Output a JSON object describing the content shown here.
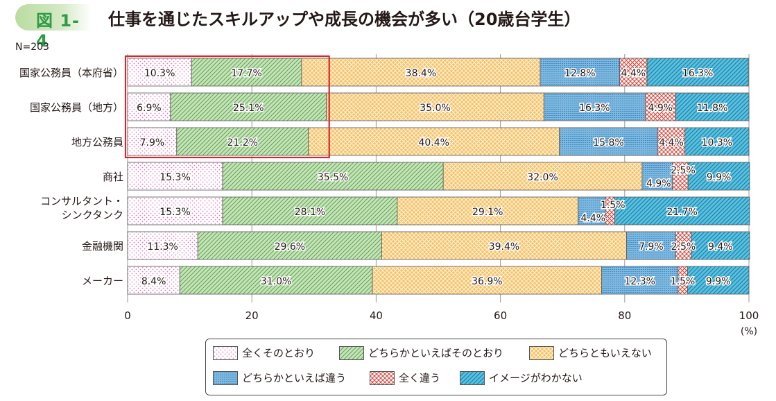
{
  "figure": {
    "badge": "図 1-4",
    "title": "仕事を通じたスキルアップや成長の機会が多い（20歳台学生）",
    "n_label": "N=203"
  },
  "colors": {
    "zen": "#f4c5e3",
    "dochira_sono": "#c7e4b8",
    "dochiramo": "#f5c26b",
    "dochira_chigau": "#7fb8de",
    "zen_chigau": "#e8928a",
    "image": "#59c2dd",
    "highlight_box": "#d9262c"
  },
  "chart_data": {
    "type": "bar",
    "orientation": "horizontal",
    "stacked": true,
    "categories": [
      "国家公務員（本府省）",
      "国家公務員（地方）",
      "地方公務員",
      "商社",
      "コンサルタント・\nシンクタンク",
      "金融機関",
      "メーカー"
    ],
    "series": [
      {
        "name": "全くそのとおり",
        "key": "zen",
        "values": [
          10.3,
          6.9,
          7.9,
          15.3,
          15.3,
          11.3,
          8.4
        ]
      },
      {
        "name": "どちらかといえばそのとおり",
        "key": "dochira_sono",
        "values": [
          17.7,
          25.1,
          21.2,
          35.5,
          28.1,
          29.6,
          31.0
        ]
      },
      {
        "name": "どちらともいえない",
        "key": "dochiramo",
        "values": [
          38.4,
          35.0,
          40.4,
          32.0,
          29.1,
          39.4,
          36.9
        ]
      },
      {
        "name": "どちらかといえば違う",
        "key": "dochira_chigau",
        "values": [
          12.8,
          16.3,
          15.8,
          4.9,
          4.4,
          7.9,
          12.3
        ]
      },
      {
        "name": "全く違う",
        "key": "zen_chigau",
        "values": [
          4.4,
          4.9,
          4.4,
          2.5,
          1.5,
          2.5,
          1.5
        ]
      },
      {
        "name": "イメージがわかない",
        "key": "image",
        "values": [
          16.3,
          11.8,
          10.3,
          9.9,
          21.7,
          9.4,
          9.9
        ]
      }
    ],
    "data_labels": [
      [
        "10.3%",
        "17.7%",
        "38.4%",
        "12.8%",
        "4.4%",
        "16.3%"
      ],
      [
        "6.9%",
        "25.1%",
        "35.0%",
        "16.3%",
        "4.9%",
        "11.8%"
      ],
      [
        "7.9%",
        "21.2%",
        "40.4%",
        "15.8%",
        "4.4%",
        "10.3%"
      ],
      [
        "15.3%",
        "35.5%",
        "32.0%",
        "4.9%",
        "2.5%",
        "9.9%"
      ],
      [
        "15.3%",
        "28.1%",
        "29.1%",
        "4.4%",
        "1.5%",
        "21.7%"
      ],
      [
        "11.3%",
        "29.6%",
        "39.4%",
        "7.9%",
        "2.5%",
        "9.4%"
      ],
      [
        "8.4%",
        "31.0%",
        "36.9%",
        "12.3%",
        "1.5%",
        "9.9%"
      ]
    ],
    "x_ticks": [
      0,
      20,
      40,
      60,
      80,
      100
    ],
    "x_tick_labels": [
      "0",
      "20",
      "40",
      "60",
      "80",
      "100"
    ],
    "xlim": [
      0,
      100
    ],
    "x_unit": "(%)",
    "gridlines": true,
    "highlight": {
      "rows": [
        0,
        1,
        2
      ],
      "up_to_series": 1,
      "color": "#d9262c"
    },
    "legend_position": "bottom",
    "legend": [
      "全くそのとおり",
      "どちらかといえばそのとおり",
      "どちらともいえない",
      "どちらかといえば違う",
      "全く違う",
      "イメージがわかない"
    ]
  }
}
